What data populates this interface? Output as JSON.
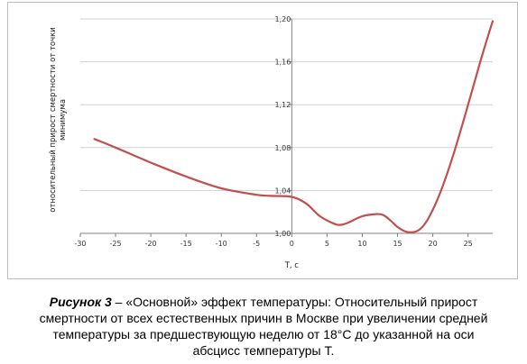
{
  "chart_data": {
    "type": "line",
    "xlabel": "T, c",
    "ylabel": "относительный прирост смертности от точки минимума",
    "xlim": [
      -30,
      28.5
    ],
    "ylim": [
      1.0,
      1.2
    ],
    "x_ticks": [
      -30,
      -25,
      -20,
      -15,
      -10,
      -5,
      0,
      5,
      10,
      15,
      20,
      25
    ],
    "y_ticks": [
      1.0,
      1.04,
      1.08,
      1.12,
      1.16,
      1.2
    ],
    "y_tick_labels": [
      "1,00",
      "1,04",
      "1,08",
      "1,12",
      "1,16",
      "1,20"
    ],
    "grid": "horizontal",
    "line_color": "#c0504d",
    "series": [
      {
        "x": [
          -28,
          -25,
          -20,
          -15,
          -10,
          -5,
          -3,
          0,
          2,
          4,
          6,
          7,
          8,
          10,
          12,
          13,
          14,
          15,
          16,
          17,
          18,
          19,
          20,
          21,
          22,
          23,
          24,
          25,
          26,
          27,
          28.5
        ],
        "y": [
          1.088,
          1.08,
          1.066,
          1.053,
          1.042,
          1.036,
          1.035,
          1.034,
          1.028,
          1.016,
          1.009,
          1.008,
          1.01,
          1.016,
          1.018,
          1.017,
          1.012,
          1.006,
          1.002,
          1.001,
          1.003,
          1.01,
          1.022,
          1.037,
          1.055,
          1.075,
          1.097,
          1.12,
          1.143,
          1.166,
          1.198
        ]
      }
    ]
  },
  "caption": {
    "label": "Рисунок 3",
    "text": " – «Основной» эффект температуры: Относительный прирост смертности от всех естественных причин в Москве при увеличении средней температуры за предшествующую неделю от 18°С до указанной на оси абсцисс температуры Т."
  }
}
